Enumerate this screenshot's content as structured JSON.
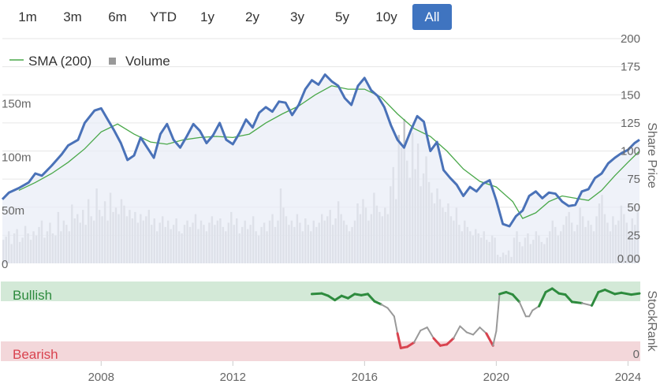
{
  "range_selector": {
    "buttons": [
      "1m",
      "3m",
      "6m",
      "YTD",
      "1y",
      "2y",
      "3y",
      "5y",
      "10y",
      "All"
    ],
    "active": "All",
    "active_color": "#3f74c0"
  },
  "legend": {
    "sma_label": "SMA (200)",
    "volume_label": "Volume"
  },
  "price_axis_title": "Share Price",
  "rank_axis_title": "StockRank",
  "rank_zones": {
    "bullish_label": "Bullish",
    "bearish_label": "Bearish",
    "bullish_color": "#2e8b3e",
    "bearish_color": "#d9434f",
    "bullish_fill": "#d3e9d7",
    "bearish_fill": "#f3d7da"
  },
  "colors": {
    "price_line": "#4a72b8",
    "sma_line": "#4aa84a",
    "volume_bar": "#c5c6ca",
    "rank_neutral": "#999999"
  },
  "chart_data": [
    {
      "type": "line",
      "name": "price",
      "x_range": [
        2005.0,
        2024.35
      ],
      "ylim": [
        0,
        200
      ],
      "y_ticks": [
        25,
        50,
        75,
        100,
        125,
        150,
        175,
        200
      ],
      "y_zero_label": "0.00",
      "x_ticks": [
        2008,
        2012,
        2016,
        2020,
        2024
      ],
      "series": [
        {
          "name": "price",
          "points": [
            [
              2005.0,
              57
            ],
            [
              2005.2,
              63
            ],
            [
              2005.5,
              67
            ],
            [
              2005.8,
              72
            ],
            [
              2006.0,
              80
            ],
            [
              2006.2,
              78
            ],
            [
              2006.5,
              87
            ],
            [
              2006.8,
              97
            ],
            [
              2007.0,
              105
            ],
            [
              2007.3,
              110
            ],
            [
              2007.5,
              125
            ],
            [
              2007.8,
              136
            ],
            [
              2008.0,
              138
            ],
            [
              2008.2,
              128
            ],
            [
              2008.4,
              118
            ],
            [
              2008.6,
              107
            ],
            [
              2008.8,
              92
            ],
            [
              2009.0,
              96
            ],
            [
              2009.2,
              112
            ],
            [
              2009.4,
              103
            ],
            [
              2009.6,
              94
            ],
            [
              2009.8,
              115
            ],
            [
              2010.0,
              124
            ],
            [
              2010.2,
              110
            ],
            [
              2010.4,
              103
            ],
            [
              2010.6,
              113
            ],
            [
              2010.8,
              124
            ],
            [
              2011.0,
              118
            ],
            [
              2011.2,
              107
            ],
            [
              2011.4,
              114
            ],
            [
              2011.6,
              125
            ],
            [
              2011.8,
              110
            ],
            [
              2012.0,
              106
            ],
            [
              2012.2,
              116
            ],
            [
              2012.4,
              128
            ],
            [
              2012.6,
              121
            ],
            [
              2012.8,
              134
            ],
            [
              2013.0,
              139
            ],
            [
              2013.2,
              135
            ],
            [
              2013.4,
              144
            ],
            [
              2013.6,
              143
            ],
            [
              2013.8,
              132
            ],
            [
              2014.0,
              141
            ],
            [
              2014.2,
              155
            ],
            [
              2014.4,
              163
            ],
            [
              2014.6,
              159
            ],
            [
              2014.8,
              168
            ],
            [
              2015.0,
              162
            ],
            [
              2015.2,
              158
            ],
            [
              2015.4,
              147
            ],
            [
              2015.6,
              141
            ],
            [
              2015.8,
              158
            ],
            [
              2016.0,
              165
            ],
            [
              2016.2,
              154
            ],
            [
              2016.4,
              149
            ],
            [
              2016.6,
              139
            ],
            [
              2016.8,
              123
            ],
            [
              2017.0,
              110
            ],
            [
              2017.2,
              103
            ],
            [
              2017.4,
              118
            ],
            [
              2017.6,
              131
            ],
            [
              2017.8,
              126
            ],
            [
              2018.0,
              100
            ],
            [
              2018.2,
              108
            ],
            [
              2018.4,
              83
            ],
            [
              2018.6,
              76
            ],
            [
              2018.8,
              70
            ],
            [
              2019.0,
              60
            ],
            [
              2019.2,
              68
            ],
            [
              2019.4,
              64
            ],
            [
              2019.6,
              71
            ],
            [
              2019.8,
              74
            ],
            [
              2020.0,
              56
            ],
            [
              2020.2,
              35
            ],
            [
              2020.4,
              33
            ],
            [
              2020.6,
              42
            ],
            [
              2020.8,
              47
            ],
            [
              2021.0,
              60
            ],
            [
              2021.2,
              64
            ],
            [
              2021.4,
              58
            ],
            [
              2021.6,
              63
            ],
            [
              2021.8,
              62
            ],
            [
              2022.0,
              55
            ],
            [
              2022.2,
              51
            ],
            [
              2022.4,
              52
            ],
            [
              2022.6,
              64
            ],
            [
              2022.8,
              66
            ],
            [
              2023.0,
              76
            ],
            [
              2023.2,
              80
            ],
            [
              2023.4,
              89
            ],
            [
              2023.6,
              94
            ],
            [
              2023.8,
              98
            ],
            [
              2024.0,
              101
            ],
            [
              2024.2,
              107
            ],
            [
              2024.35,
              110
            ]
          ]
        },
        {
          "name": "SMA (200)",
          "points": [
            [
              2005.5,
              65
            ],
            [
              2006.0,
              72
            ],
            [
              2006.5,
              80
            ],
            [
              2007.0,
              90
            ],
            [
              2007.5,
              102
            ],
            [
              2008.0,
              117
            ],
            [
              2008.5,
              124
            ],
            [
              2009.0,
              115
            ],
            [
              2009.5,
              108
            ],
            [
              2010.0,
              106
            ],
            [
              2010.5,
              110
            ],
            [
              2011.0,
              112
            ],
            [
              2011.5,
              113
            ],
            [
              2012.0,
              112
            ],
            [
              2012.5,
              115
            ],
            [
              2013.0,
              125
            ],
            [
              2013.5,
              133
            ],
            [
              2014.0,
              140
            ],
            [
              2014.5,
              150
            ],
            [
              2015.0,
              158
            ],
            [
              2015.5,
              155
            ],
            [
              2016.0,
              155
            ],
            [
              2016.5,
              148
            ],
            [
              2017.0,
              133
            ],
            [
              2017.5,
              120
            ],
            [
              2018.0,
              113
            ],
            [
              2018.5,
              100
            ],
            [
              2019.0,
              84
            ],
            [
              2019.5,
              73
            ],
            [
              2020.0,
              68
            ],
            [
              2020.5,
              55
            ],
            [
              2020.8,
              40
            ],
            [
              2021.2,
              45
            ],
            [
              2021.6,
              55
            ],
            [
              2022.0,
              60
            ],
            [
              2022.4,
              58
            ],
            [
              2022.8,
              56
            ],
            [
              2023.2,
              65
            ],
            [
              2023.6,
              78
            ],
            [
              2024.0,
              90
            ],
            [
              2024.35,
              100
            ]
          ]
        }
      ]
    },
    {
      "type": "bar",
      "name": "Volume",
      "ylim": [
        0,
        210
      ],
      "y_ticks": [
        0,
        50,
        100,
        150
      ],
      "y_tick_labels": [
        "0",
        "50m",
        "100m",
        "150m"
      ],
      "values": [
        22,
        25,
        30,
        18,
        28,
        32,
        20,
        24,
        35,
        28,
        22,
        30,
        26,
        34,
        40,
        24,
        30,
        38,
        28,
        26,
        48,
        30,
        40,
        36,
        30,
        55,
        42,
        46,
        38,
        50,
        36,
        60,
        44,
        40,
        70,
        50,
        44,
        58,
        40,
        66,
        48,
        52,
        46,
        60,
        54,
        44,
        50,
        42,
        48,
        38,
        46,
        40,
        44,
        50,
        36,
        42,
        30,
        38,
        44,
        34,
        40,
        32,
        36,
        42,
        30,
        28,
        36,
        40,
        34,
        38,
        46,
        32,
        40,
        36,
        30,
        38,
        44,
        36,
        40,
        42,
        34,
        30,
        38,
        48,
        36,
        42,
        28,
        34,
        40,
        32,
        36,
        44,
        30,
        26,
        34,
        38,
        30,
        40,
        46,
        34,
        40,
        70,
        52,
        44,
        36,
        40,
        34,
        46,
        38,
        30,
        42,
        36,
        30,
        40,
        34,
        38,
        46,
        40,
        44,
        50,
        36,
        42,
        58,
        46,
        40,
        36,
        30,
        34,
        40,
        56,
        46,
        60,
        52,
        40,
        46,
        66,
        54,
        48,
        44,
        52,
        46,
        72,
        90,
        60,
        120,
        108,
        135,
        96,
        80,
        122,
        88,
        112,
        72,
        84,
        100,
        76,
        66,
        56,
        70,
        60,
        52,
        48,
        56,
        44,
        40,
        52,
        36,
        30,
        40,
        34,
        30,
        26,
        32,
        28,
        24,
        30,
        22,
        20,
        26,
        24,
        8,
        6,
        10,
        8,
        12,
        6,
        24,
        30,
        20,
        16,
        24,
        28,
        18,
        22,
        30,
        26,
        20,
        18,
        24,
        30,
        40,
        34,
        26,
        30,
        36,
        44,
        48,
        38,
        30,
        36,
        52,
        44,
        34,
        40,
        36,
        30,
        44,
        56,
        64,
        46,
        38,
        30,
        44,
        36,
        40,
        54,
        46,
        38,
        30,
        42,
        36,
        48
      ]
    },
    {
      "type": "line",
      "name": "StockRank",
      "ylim": [
        0,
        100
      ],
      "y_tick_labels": [
        "0"
      ],
      "series": [
        {
          "name": "StockRank",
          "points": [
            [
              2014.4,
              95
            ],
            [
              2014.7,
              96
            ],
            [
              2014.9,
              92
            ],
            [
              2015.1,
              85
            ],
            [
              2015.3,
              92
            ],
            [
              2015.5,
              88
            ],
            [
              2015.7,
              95
            ],
            [
              2015.9,
              93
            ],
            [
              2016.1,
              95
            ],
            [
              2016.3,
              83
            ],
            [
              2016.5,
              78
            ],
            [
              2016.7,
              72
            ],
            [
              2016.9,
              58
            ],
            [
              2017.0,
              30
            ],
            [
              2017.1,
              6
            ],
            [
              2017.3,
              8
            ],
            [
              2017.5,
              15
            ],
            [
              2017.7,
              35
            ],
            [
              2017.9,
              40
            ],
            [
              2018.1,
              22
            ],
            [
              2018.3,
              10
            ],
            [
              2018.5,
              12
            ],
            [
              2018.7,
              22
            ],
            [
              2018.9,
              42
            ],
            [
              2019.1,
              32
            ],
            [
              2019.3,
              28
            ],
            [
              2019.5,
              40
            ],
            [
              2019.7,
              30
            ],
            [
              2019.9,
              10
            ],
            [
              2020.0,
              34
            ],
            [
              2020.1,
              95
            ],
            [
              2020.3,
              98
            ],
            [
              2020.5,
              94
            ],
            [
              2020.7,
              82
            ],
            [
              2020.9,
              58
            ],
            [
              2021.0,
              58
            ],
            [
              2021.1,
              68
            ],
            [
              2021.3,
              75
            ],
            [
              2021.5,
              98
            ],
            [
              2021.7,
              104
            ],
            [
              2021.9,
              96
            ],
            [
              2022.1,
              94
            ],
            [
              2022.3,
              82
            ],
            [
              2022.6,
              80
            ],
            [
              2022.9,
              76
            ],
            [
              2023.1,
              98
            ],
            [
              2023.3,
              102
            ],
            [
              2023.6,
              95
            ],
            [
              2023.8,
              97
            ],
            [
              2024.1,
              94
            ],
            [
              2024.35,
              96
            ]
          ]
        }
      ]
    }
  ]
}
